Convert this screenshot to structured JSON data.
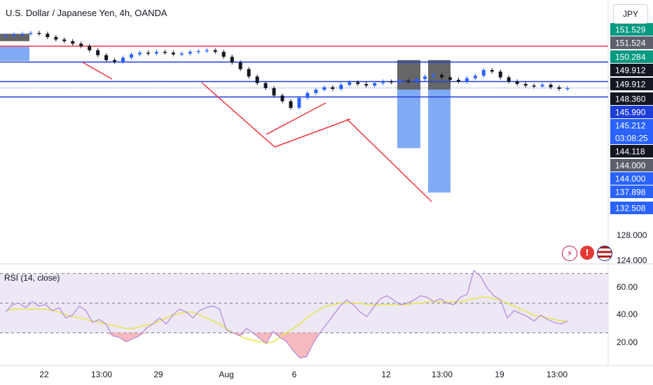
{
  "header": {
    "title": "U.S. Dollar / Japanese Yen, 4h, OANDA",
    "currency": "JPY"
  },
  "colors": {
    "up": "#2962ff",
    "down": "#131722",
    "level_red": "#f23645",
    "level_blue": "#1e3fd8",
    "zone_gray": "#555555",
    "zone_blue": "#6b9cf5",
    "rsi_line": "#b388d8",
    "rsi_ma": "#e6e64a",
    "rsi_band": "#ede7f6",
    "rsi_oversold": "#f4a7b0"
  },
  "chart_data": [
    {
      "type": "candlestick",
      "title": "U.S. Dollar / Japanese Yen, 4h, OANDA",
      "ylim": [
        124.0,
        152.5
      ],
      "x_ticks": [
        "22",
        "13:00",
        "29",
        "Aug",
        "6",
        "12",
        "13:00",
        "19",
        "13:00"
      ],
      "price_labels": [
        {
          "text": "151.529",
          "value": 151.529,
          "bg": "#089981",
          "fg": "#ffffff"
        },
        {
          "text": "151.524",
          "value": 151.524,
          "bg": "#5d606b",
          "fg": "#ffffff"
        },
        {
          "text": "150.284",
          "value": 150.284,
          "bg": "#089981",
          "fg": "#ffffff"
        },
        {
          "text": "149.912",
          "value": 149.912,
          "bg": "#131722",
          "fg": "#ffffff"
        },
        {
          "text": "149.912",
          "value": 149.912,
          "bg": "#131722",
          "fg": "#ffffff"
        },
        {
          "text": "148.360",
          "value": 148.36,
          "bg": "#131722",
          "fg": "#ffffff"
        },
        {
          "text": "145.990",
          "value": 145.99,
          "bg": "#1e3fd8",
          "fg": "#ffffff"
        },
        {
          "text": "145.212",
          "value": 145.212,
          "bg": "#2962ff",
          "fg": "#ffffff"
        },
        {
          "text": "03:08:25",
          "value": 145.212,
          "bg": "#2962ff",
          "fg": "#ffffff"
        },
        {
          "text": "144.118",
          "value": 144.118,
          "bg": "#131722",
          "fg": "#ffffff"
        },
        {
          "text": "144.000",
          "value": 144.0,
          "bg": "#5d606b",
          "fg": "#ffffff"
        },
        {
          "text": "144.000",
          "value": 144.0,
          "bg": "#2962ff",
          "fg": "#ffffff"
        },
        {
          "text": "137.898",
          "value": 137.898,
          "bg": "#2962ff",
          "fg": "#ffffff"
        },
        {
          "text": "132.508",
          "value": 132.508,
          "bg": "#2962ff",
          "fg": "#ffffff"
        }
      ],
      "y_ticks": [
        "128.000",
        "124.000"
      ],
      "levels": [
        {
          "value": 150.284,
          "color": "#f23645"
        },
        {
          "value": 148.36,
          "color": "#1e3fd8"
        },
        {
          "value": 145.99,
          "color": "#1e3fd8"
        },
        {
          "value": 144.118,
          "color": "#1e3fd8"
        }
      ],
      "close_path": [
        151.6,
        151.7,
        151.8,
        151.9,
        151.8,
        151.4,
        151.1,
        150.9,
        150.6,
        150.3,
        149.8,
        149.2,
        148.6,
        148.4,
        148.9,
        149.3,
        149.5,
        149.4,
        149.6,
        149.5,
        149.3,
        149.4,
        149.6,
        149.7,
        149.8,
        149.6,
        149.0,
        148.3,
        147.5,
        146.6,
        145.8,
        145.2,
        144.3,
        143.6,
        142.8,
        144.0,
        144.6,
        145.0,
        145.3,
        145.1,
        145.6,
        145.9,
        145.7,
        145.5,
        145.8,
        146.0,
        145.9,
        146.1,
        146.0,
        146.3,
        146.6,
        146.8,
        146.5,
        146.2,
        146.0,
        146.4,
        146.7,
        147.4,
        147.2,
        146.5,
        146.0,
        145.7,
        145.5,
        145.4,
        145.6,
        145.3,
        145.1,
        145.2
      ],
      "zones": [
        {
          "type": "gray",
          "from": 151.8,
          "to": 150.9
        },
        {
          "type": "blue",
          "from": 150.3,
          "to": 148.5
        },
        {
          "type": "gray",
          "from": 148.6,
          "to": 145.0
        },
        {
          "type": "blue",
          "from": 145.0,
          "to": 137.9
        },
        {
          "type": "gray",
          "from": 148.6,
          "to": 145.0
        },
        {
          "type": "blue",
          "from": 145.0,
          "to": 132.5
        }
      ]
    },
    {
      "type": "line",
      "title": "RSI (14, close)",
      "ylim": [
        10,
        75
      ],
      "y_ticks": [
        "60.00",
        "40.00",
        "20.00"
      ],
      "band": [
        30,
        70
      ],
      "series": [
        {
          "values": [
            44,
            49,
            50,
            47,
            51,
            48,
            49,
            45,
            47,
            40,
            42,
            48,
            45,
            37,
            39,
            36,
            28,
            27,
            24,
            26,
            28,
            33,
            36,
            40,
            36,
            42,
            46,
            44,
            40,
            45,
            47,
            48,
            46,
            32,
            30,
            28,
            33,
            30,
            26,
            23,
            31,
            27,
            24,
            18,
            13,
            14,
            23,
            30,
            36,
            42,
            48,
            52,
            49,
            44,
            41,
            47,
            53,
            55,
            52,
            49,
            50,
            52,
            55,
            54,
            51,
            53,
            50,
            49,
            54,
            56,
            72,
            68,
            60,
            55,
            52,
            40,
            45,
            43,
            41,
            38,
            42,
            39,
            37,
            36,
            38
          ]
        },
        {
          "values": [
            45,
            46,
            46,
            46,
            46,
            46,
            46,
            45,
            44,
            42,
            41,
            40,
            39,
            38,
            37,
            36,
            35,
            34,
            33,
            33,
            34,
            35,
            36,
            38,
            40,
            42,
            43,
            44,
            44,
            42,
            40,
            38,
            36,
            33,
            30,
            28,
            26,
            25,
            24,
            23,
            24,
            27,
            30,
            33,
            36,
            40,
            43,
            46,
            48,
            49,
            50,
            50,
            50,
            50,
            49,
            49,
            49,
            49,
            49,
            49,
            49,
            50,
            50,
            51,
            51,
            51,
            51,
            51,
            51,
            52,
            53,
            54,
            54,
            53,
            52,
            50,
            48,
            46,
            44,
            42,
            41,
            40,
            39,
            38,
            38
          ]
        }
      ]
    }
  ],
  "footer": {}
}
